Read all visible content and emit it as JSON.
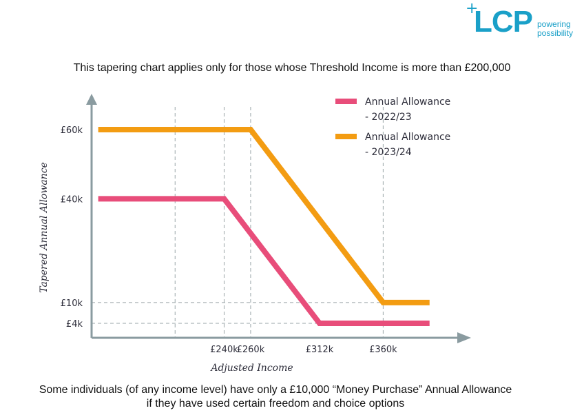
{
  "logo": {
    "brand": "LCP",
    "plus": "+",
    "tagline_line1": "powering",
    "tagline_line2": "possibility",
    "color": "#1aa0c8"
  },
  "top_note": "This tapering chart applies only for those whose Threshold Income is more than £200,000",
  "bottom_note_line1": "Some individuals (of any income level) have only a £10,000 “Money Purchase” Annual Allowance",
  "bottom_note_line2": "if they have used certain freedom and choice options",
  "chart_data": {
    "type": "line",
    "title": "",
    "xlabel": "Adjusted Income",
    "ylabel": "Tapered Annual Allowance",
    "x_ticks": [
      {
        "value": 240,
        "label": "£240k"
      },
      {
        "value": 260,
        "label": "£260k"
      },
      {
        "value": 312,
        "label": "£312k"
      },
      {
        "value": 360,
        "label": "£360k"
      }
    ],
    "y_ticks": [
      {
        "value": 4,
        "label": "£4k"
      },
      {
        "value": 10,
        "label": "£10k"
      },
      {
        "value": 40,
        "label": "£40k"
      },
      {
        "value": 60,
        "label": "£60k"
      }
    ],
    "xlim": [
      140,
      418
    ],
    "ylim": [
      0,
      75
    ],
    "series": [
      {
        "name": "Annual Allowance - 2022/23",
        "legend_line1": "Annual Allowance",
        "legend_line2": "- 2022/23",
        "color": "#e84d7a",
        "points": [
          [
            145,
            40
          ],
          [
            240,
            40
          ],
          [
            312,
            4
          ],
          [
            395,
            4
          ]
        ]
      },
      {
        "name": "Annual Allowance - 2023/24",
        "legend_line1": "Annual Allowance",
        "legend_line2": "- 2023/24",
        "color": "#f39c12",
        "points": [
          [
            145,
            60
          ],
          [
            260,
            60
          ],
          [
            360,
            10
          ],
          [
            395,
            10
          ]
        ]
      }
    ],
    "vertical_guides": [
      203,
      240,
      260,
      360
    ],
    "horizontal_guides": [
      4,
      10
    ],
    "legend_position": "top-right",
    "axis_color": "#8a9ba0",
    "grid_color": "#9aa5a8"
  }
}
